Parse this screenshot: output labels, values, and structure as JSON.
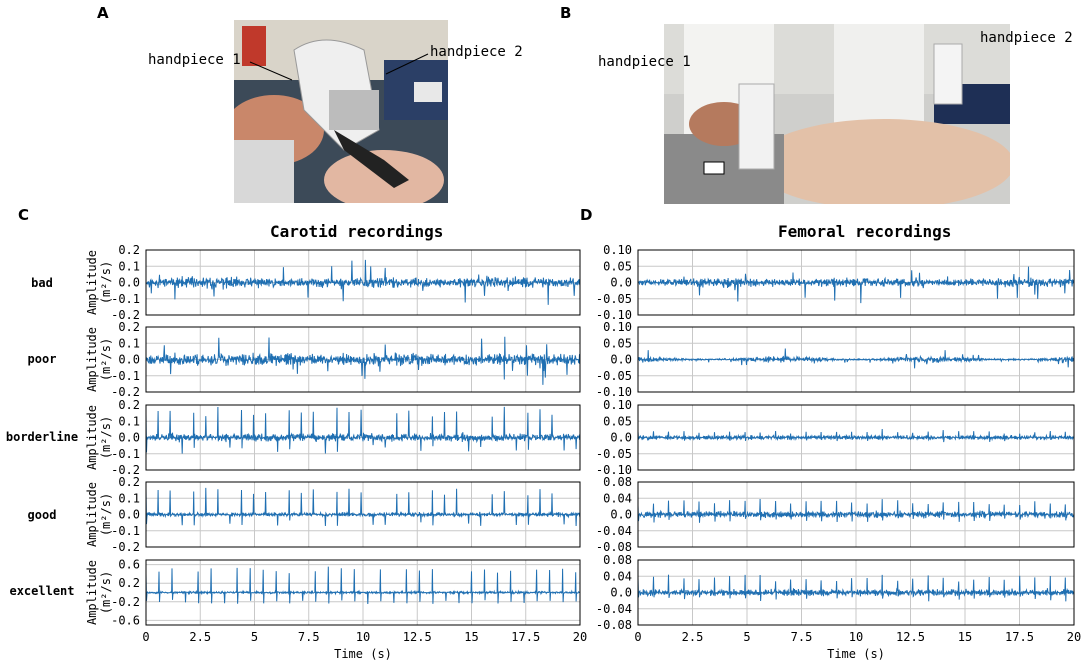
{
  "panels": {
    "A": {
      "letter": "A",
      "labels": [
        "handpiece 1",
        "handpiece 2"
      ]
    },
    "B": {
      "letter": "B",
      "labels": [
        "handpiece 1",
        "handpiece 2"
      ]
    },
    "C": {
      "letter": "C",
      "title": "Carotid recordings"
    },
    "D": {
      "letter": "D",
      "title": "Femoral recordings"
    }
  },
  "quality_levels": [
    "bad",
    "poor",
    "borderline",
    "good",
    "excellent"
  ],
  "colors": {
    "signal": "#1f6fb2",
    "grid": "#c8c8c8",
    "axis": "#000000"
  },
  "chart_data": [
    {
      "type": "line",
      "title": "Carotid recordings",
      "xlabel": "Time (s)",
      "x_ticks": [
        "0",
        "2.5",
        "5",
        "7.5",
        "10",
        "12.5",
        "15",
        "17.5",
        "20"
      ],
      "xlim": [
        0,
        20
      ],
      "rows": [
        {
          "name": "bad",
          "ylabel": "Amplitude (m²/s)",
          "ylim": [
            -0.2,
            0.2
          ],
          "y_ticks": [
            "0.2",
            "0.1",
            "0.0",
            "-0.1",
            "-0.2"
          ],
          "y_tick_values": [
            0.2,
            0.1,
            0.0,
            -0.1,
            -0.2
          ],
          "amp": 0.045,
          "spike": 0.16,
          "period": 0,
          "seed": 11,
          "modulation": 0.3
        },
        {
          "name": "poor",
          "ylabel": "Amplitude (m²/s)",
          "ylim": [
            -0.2,
            0.2
          ],
          "y_ticks": [
            "0.2",
            "0.1",
            "0.0",
            "-0.1",
            "-0.2"
          ],
          "y_tick_values": [
            0.2,
            0.1,
            0.0,
            -0.1,
            -0.2
          ],
          "amp": 0.05,
          "spike": 0.15,
          "period": 0,
          "seed": 23,
          "modulation": 0.2
        },
        {
          "name": "borderline",
          "ylabel": "Amplitude (m²/s)",
          "ylim": [
            -0.2,
            0.2
          ],
          "y_ticks": [
            "0.2",
            "0.1",
            "0.0",
            "-0.1",
            "-0.2"
          ],
          "y_tick_values": [
            0.2,
            0.1,
            0.0,
            -0.1,
            -0.2
          ],
          "amp": 0.03,
          "spike": 0.19,
          "period": 0.55,
          "seed": 37,
          "modulation": 0.0
        },
        {
          "name": "good",
          "ylabel": "Amplitude (m²/s)",
          "ylim": [
            -0.2,
            0.2
          ],
          "y_ticks": [
            "0.2",
            "0.1",
            "0.0",
            "-0.1",
            "-0.2"
          ],
          "y_tick_values": [
            0.2,
            0.1,
            0.0,
            -0.1,
            -0.2
          ],
          "amp": 0.015,
          "spike": 0.16,
          "period": 0.55,
          "seed": 41,
          "modulation": 0.0
        },
        {
          "name": "excellent",
          "ylabel": "Amplitude (m²/s)",
          "ylim": [
            -0.7,
            0.7
          ],
          "y_ticks": [
            "0.6",
            "0.2",
            "-0.2",
            "-0.6"
          ],
          "y_tick_values": [
            0.6,
            0.2,
            -0.2,
            -0.6
          ],
          "amp": 0.03,
          "spike": 0.55,
          "period": 0.6,
          "seed": 53,
          "modulation": 0.0
        }
      ]
    },
    {
      "type": "line",
      "title": "Femoral recordings",
      "xlabel": "Time (s)",
      "x_ticks": [
        "0",
        "2.5",
        "5",
        "7.5",
        "10",
        "12.5",
        "15",
        "17.5",
        "20"
      ],
      "xlim": [
        0,
        20
      ],
      "rows": [
        {
          "name": "bad",
          "ylabel": "",
          "ylim": [
            -0.1,
            0.1
          ],
          "y_ticks": [
            "0.10",
            "0.05",
            "0.0",
            "-0.05",
            "-0.10"
          ],
          "y_tick_values": [
            0.1,
            0.05,
            0.0,
            -0.05,
            -0.1
          ],
          "amp": 0.018,
          "spike": 0.06,
          "period": 0,
          "seed": 61,
          "modulation": 0.3
        },
        {
          "name": "poor",
          "ylabel": "",
          "ylim": [
            -0.1,
            0.1
          ],
          "y_ticks": [
            "0.10",
            "0.05",
            "0.0",
            "-0.05",
            "-0.10"
          ],
          "y_tick_values": [
            0.1,
            0.05,
            0.0,
            -0.05,
            -0.1
          ],
          "amp": 0.012,
          "spike": 0.04,
          "period": 0,
          "seed": 71,
          "modulation": 0.8
        },
        {
          "name": "borderline",
          "ylabel": "",
          "ylim": [
            -0.1,
            0.1
          ],
          "y_ticks": [
            "0.10",
            "0.05",
            "0.0",
            "-0.05",
            "-0.10"
          ],
          "y_tick_values": [
            0.1,
            0.05,
            0.0,
            -0.05,
            -0.1
          ],
          "amp": 0.008,
          "spike": 0.02,
          "period": 0.7,
          "seed": 83,
          "modulation": 0.0
        },
        {
          "name": "good",
          "ylabel": "",
          "ylim": [
            -0.08,
            0.08
          ],
          "y_ticks": [
            "0.08",
            "0.04",
            "0.0",
            "-0.04",
            "-0.08"
          ],
          "y_tick_values": [
            0.08,
            0.04,
            0.0,
            -0.04,
            -0.08
          ],
          "amp": 0.01,
          "spike": 0.035,
          "period": 0.7,
          "seed": 97,
          "modulation": 0.0
        },
        {
          "name": "excellent",
          "ylabel": "",
          "ylim": [
            -0.08,
            0.08
          ],
          "y_ticks": [
            "0.08",
            "0.04",
            "0.0",
            "-0.04",
            "-0.08"
          ],
          "y_tick_values": [
            0.08,
            0.04,
            0.0,
            -0.04,
            -0.08
          ],
          "amp": 0.01,
          "spike": 0.04,
          "period": 0.7,
          "seed": 101,
          "modulation": 0.0
        }
      ]
    }
  ]
}
